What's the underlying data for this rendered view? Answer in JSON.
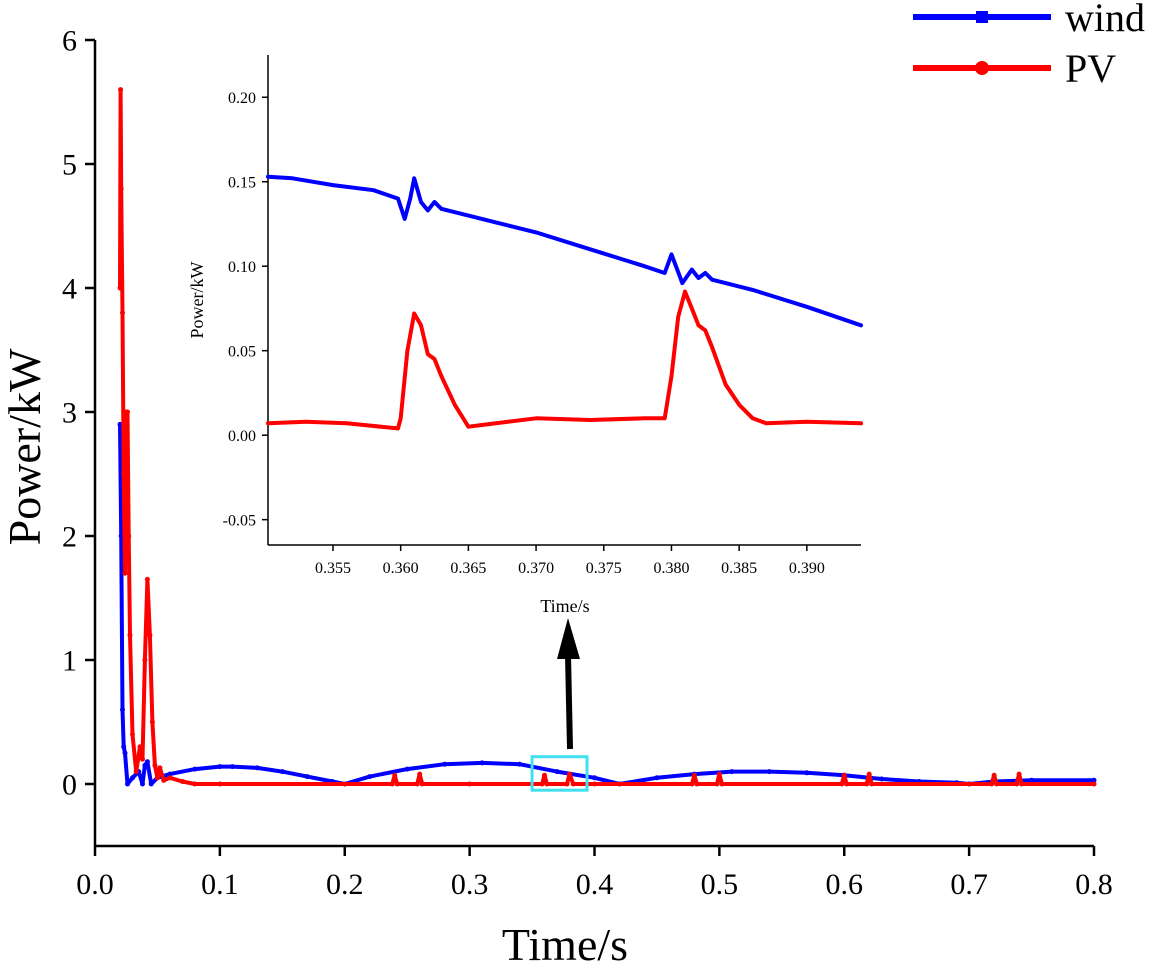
{
  "colors": {
    "wind": "#0000ff",
    "pv": "#ff0000",
    "zoom_box": "#40e0f0",
    "axis": "#000000"
  },
  "chart_data": [
    {
      "id": "main",
      "type": "line",
      "xlabel": "Time/s",
      "ylabel": "Power/kW",
      "xlim": [
        0.0,
        0.8
      ],
      "ylim": [
        -0.5,
        6.0
      ],
      "xticks": [
        0.0,
        0.1,
        0.2,
        0.3,
        0.4,
        0.5,
        0.6,
        0.7,
        0.8
      ],
      "xtick_labels": [
        "0.0",
        "0.1",
        "0.2",
        "0.3",
        "0.4",
        "0.5",
        "0.6",
        "0.7",
        "0.8"
      ],
      "yticks": [
        0,
        1,
        2,
        3,
        4,
        5,
        6
      ],
      "ytick_labels": [
        "0",
        "1",
        "2",
        "3",
        "4",
        "5",
        "6"
      ],
      "legend": "top-right",
      "series": [
        {
          "name": "wind",
          "marker": "square",
          "x": [
            0.02,
            0.021,
            0.022,
            0.023,
            0.024,
            0.026,
            0.03,
            0.035,
            0.038,
            0.04,
            0.042,
            0.045,
            0.05,
            0.06,
            0.08,
            0.1,
            0.11,
            0.13,
            0.15,
            0.17,
            0.19,
            0.2,
            0.22,
            0.25,
            0.28,
            0.31,
            0.34,
            0.37,
            0.4,
            0.42,
            0.45,
            0.48,
            0.51,
            0.54,
            0.57,
            0.6,
            0.63,
            0.66,
            0.69,
            0.7,
            0.72,
            0.75,
            0.8
          ],
          "y": [
            2.9,
            2.0,
            0.6,
            0.3,
            0.25,
            0.0,
            0.05,
            0.1,
            0.0,
            0.15,
            0.18,
            0.0,
            0.05,
            0.08,
            0.12,
            0.14,
            0.14,
            0.13,
            0.1,
            0.06,
            0.02,
            0.0,
            0.06,
            0.12,
            0.16,
            0.17,
            0.16,
            0.1,
            0.05,
            0.0,
            0.05,
            0.08,
            0.1,
            0.1,
            0.09,
            0.07,
            0.04,
            0.02,
            0.01,
            0.0,
            0.02,
            0.03,
            0.03
          ]
        },
        {
          "name": "PV",
          "marker": "circle",
          "x": [
            0.02,
            0.0205,
            0.021,
            0.022,
            0.023,
            0.024,
            0.025,
            0.026,
            0.027,
            0.028,
            0.03,
            0.033,
            0.036,
            0.038,
            0.04,
            0.042,
            0.044,
            0.046,
            0.048,
            0.05,
            0.052,
            0.055,
            0.06,
            0.07,
            0.08,
            0.1,
            0.2,
            0.238,
            0.24,
            0.242,
            0.258,
            0.26,
            0.262,
            0.3,
            0.358,
            0.36,
            0.362,
            0.378,
            0.38,
            0.383,
            0.4,
            0.478,
            0.48,
            0.482,
            0.498,
            0.5,
            0.502,
            0.598,
            0.6,
            0.602,
            0.618,
            0.62,
            0.622,
            0.718,
            0.72,
            0.722,
            0.738,
            0.74,
            0.742,
            0.8
          ],
          "y": [
            4.0,
            5.6,
            4.8,
            3.8,
            2.5,
            1.7,
            3.0,
            3.0,
            2.0,
            1.2,
            0.4,
            0.1,
            0.3,
            0.2,
            1.0,
            1.65,
            1.2,
            0.5,
            0.15,
            0.05,
            0.13,
            0.03,
            0.05,
            0.02,
            0.0,
            0.0,
            0.0,
            0.0,
            0.07,
            0.0,
            0.0,
            0.08,
            0.0,
            0.0,
            0.0,
            0.07,
            0.0,
            0.0,
            0.08,
            0.0,
            0.0,
            0.0,
            0.07,
            0.0,
            0.0,
            0.08,
            0.0,
            0.0,
            0.07,
            0.0,
            0.0,
            0.08,
            0.0,
            0.0,
            0.07,
            0.0,
            0.0,
            0.08,
            0.0,
            0.0
          ]
        }
      ],
      "zoom_region": {
        "x": [
          0.35,
          0.394
        ],
        "y": [
          -0.05,
          0.22
        ]
      }
    },
    {
      "id": "inset",
      "type": "line",
      "xlabel": "Time/s",
      "ylabel": "Power/kW",
      "xlim": [
        0.3502,
        0.394
      ],
      "ylim": [
        -0.065,
        0.225
      ],
      "xticks": [
        0.355,
        0.36,
        0.365,
        0.37,
        0.375,
        0.38,
        0.385,
        0.39
      ],
      "xtick_labels": [
        "0.355",
        "0.360",
        "0.365",
        "0.370",
        "0.375",
        "0.380",
        "0.385",
        "0.390"
      ],
      "yticks": [
        -0.05,
        0.0,
        0.05,
        0.1,
        0.15,
        0.2
      ],
      "ytick_labels": [
        "-0.05",
        "0.00",
        "0.05",
        "0.10",
        "0.15",
        "0.20"
      ],
      "series": [
        {
          "name": "wind",
          "x": [
            0.3502,
            0.352,
            0.355,
            0.358,
            0.3598,
            0.3603,
            0.3607,
            0.361,
            0.3615,
            0.362,
            0.3625,
            0.363,
            0.366,
            0.37,
            0.374,
            0.378,
            0.3795,
            0.38,
            0.3808,
            0.3815,
            0.382,
            0.3825,
            0.383,
            0.386,
            0.39,
            0.394
          ],
          "y": [
            0.153,
            0.152,
            0.148,
            0.145,
            0.14,
            0.128,
            0.14,
            0.152,
            0.138,
            0.133,
            0.138,
            0.134,
            0.128,
            0.12,
            0.11,
            0.1,
            0.096,
            0.107,
            0.09,
            0.098,
            0.093,
            0.096,
            0.092,
            0.086,
            0.076,
            0.065
          ]
        },
        {
          "name": "PV",
          "x": [
            0.3502,
            0.353,
            0.356,
            0.3598,
            0.36,
            0.3605,
            0.361,
            0.3615,
            0.362,
            0.3625,
            0.363,
            0.364,
            0.365,
            0.366,
            0.37,
            0.374,
            0.378,
            0.3795,
            0.38,
            0.3805,
            0.381,
            0.3815,
            0.382,
            0.3825,
            0.383,
            0.384,
            0.385,
            0.386,
            0.387,
            0.39,
            0.394
          ],
          "y": [
            0.007,
            0.008,
            0.007,
            0.004,
            0.01,
            0.05,
            0.072,
            0.065,
            0.048,
            0.045,
            0.035,
            0.018,
            0.005,
            0.006,
            0.01,
            0.009,
            0.01,
            0.01,
            0.035,
            0.07,
            0.085,
            0.075,
            0.065,
            0.062,
            0.052,
            0.03,
            0.018,
            0.01,
            0.007,
            0.008,
            0.007
          ]
        }
      ]
    }
  ]
}
